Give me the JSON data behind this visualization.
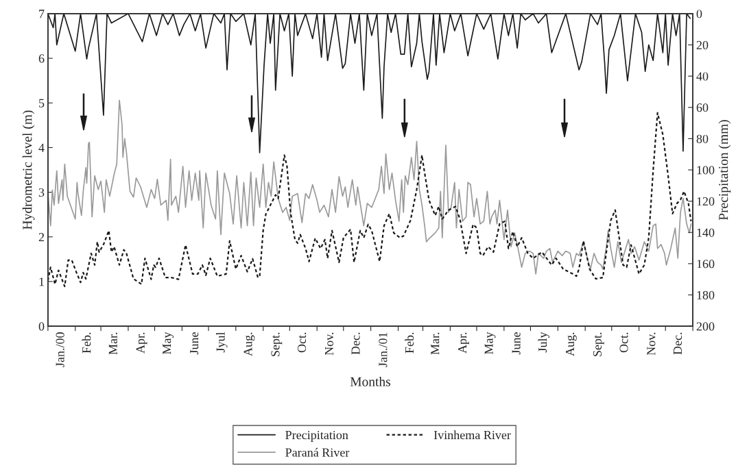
{
  "chart_data": {
    "type": "line",
    "xlabel": "Months",
    "ylabel": "Hydrometric level (m)",
    "y2label": "Precipitation (mm)",
    "xlim": [
      "2000-01-01",
      "2002-01-01"
    ],
    "xticks": [
      {
        "value": "2000-01-01",
        "label": null
      },
      {
        "value": "2000-01-16",
        "label": "Jan./00"
      },
      {
        "value": "2000-02-01",
        "label": null
      },
      {
        "value": "2000-02-15",
        "label": "Feb."
      },
      {
        "value": "2000-03-01",
        "label": null
      },
      {
        "value": "2000-03-16",
        "label": "Mar."
      },
      {
        "value": "2000-04-01",
        "label": null
      },
      {
        "value": "2000-04-16",
        "label": "Apr."
      },
      {
        "value": "2000-05-01",
        "label": null
      },
      {
        "value": "2000-05-16",
        "label": "May"
      },
      {
        "value": "2000-06-01",
        "label": null
      },
      {
        "value": "2000-06-16",
        "label": "June"
      },
      {
        "value": "2000-07-01",
        "label": null
      },
      {
        "value": "2000-07-16",
        "label": "Jyul"
      },
      {
        "value": "2000-08-01",
        "label": null
      },
      {
        "value": "2000-08-16",
        "label": "Aug."
      },
      {
        "value": "2000-09-01",
        "label": null
      },
      {
        "value": "2000-09-16",
        "label": "Sept."
      },
      {
        "value": "2000-10-01",
        "label": null
      },
      {
        "value": "2000-10-16",
        "label": "Oct."
      },
      {
        "value": "2000-11-01",
        "label": null
      },
      {
        "value": "2000-11-16",
        "label": "Nov."
      },
      {
        "value": "2000-12-01",
        "label": null
      },
      {
        "value": "2000-12-16",
        "label": "Dec."
      },
      {
        "value": "2001-01-01",
        "label": null
      },
      {
        "value": "2001-01-16",
        "label": "Jan./01"
      },
      {
        "value": "2001-02-01",
        "label": null
      },
      {
        "value": "2001-02-15",
        "label": "Feb."
      },
      {
        "value": "2001-03-01",
        "label": null
      },
      {
        "value": "2001-03-16",
        "label": "Mar."
      },
      {
        "value": "2001-04-01",
        "label": null
      },
      {
        "value": "2001-04-16",
        "label": "Apr."
      },
      {
        "value": "2001-05-01",
        "label": null
      },
      {
        "value": "2001-05-16",
        "label": "May"
      },
      {
        "value": "2001-06-01",
        "label": null
      },
      {
        "value": "2001-06-16",
        "label": "June"
      },
      {
        "value": "2001-07-01",
        "label": null
      },
      {
        "value": "2001-07-16",
        "label": "July"
      },
      {
        "value": "2001-08-01",
        "label": null
      },
      {
        "value": "2001-08-16",
        "label": "Aug."
      },
      {
        "value": "2001-09-01",
        "label": null
      },
      {
        "value": "2001-09-16",
        "label": "Sept."
      },
      {
        "value": "2001-10-01",
        "label": null
      },
      {
        "value": "2001-10-16",
        "label": "Oct."
      },
      {
        "value": "2001-11-01",
        "label": null
      },
      {
        "value": "2001-11-16",
        "label": "Nov."
      },
      {
        "value": "2001-12-01",
        "label": null
      },
      {
        "value": "2001-12-16",
        "label": "Dec."
      },
      {
        "value": "2002-01-01",
        "label": null
      }
    ],
    "ylim": [
      0,
      7
    ],
    "yticks": [
      0,
      1,
      2,
      3,
      4,
      5,
      6,
      7
    ],
    "y2lim": [
      200,
      0
    ],
    "y2ticks": [
      0,
      20,
      40,
      60,
      80,
      100,
      120,
      140,
      160,
      180,
      200
    ],
    "legend": "bottom",
    "grid": false,
    "series": [
      {
        "name": "Precipitation",
        "color": "#1a1a1a",
        "axis": "y2",
        "line_style": "solid",
        "x": [
          "2000-01-01",
          "2000-01-07",
          "2000-01-09",
          "2000-01-11",
          "2000-01-19",
          "2000-02-01",
          "2000-02-07",
          "2000-02-14",
          "2000-02-16",
          "2000-02-25",
          "2000-03-04",
          "2000-03-08",
          "2000-03-13",
          "2000-04-01",
          "2000-04-17",
          "2000-04-25",
          "2000-05-03",
          "2000-05-10",
          "2000-05-16",
          "2000-05-22",
          "2000-05-29",
          "2000-06-03",
          "2000-06-10",
          "2000-06-16",
          "2000-06-22",
          "2000-06-28",
          "2000-07-07",
          "2000-07-15",
          "2000-07-19",
          "2000-07-22",
          "2000-07-26",
          "2000-08-01",
          "2000-08-10",
          "2000-08-18",
          "2000-08-23",
          "2000-08-28",
          "2000-09-02",
          "2000-09-06",
          "2000-09-09",
          "2000-09-13",
          "2000-09-15",
          "2000-09-20",
          "2000-09-25",
          "2000-09-30",
          "2000-10-04",
          "2000-10-07",
          "2000-10-10",
          "2000-10-19",
          "2000-10-27",
          "2000-11-01",
          "2000-11-06",
          "2000-11-09",
          "2000-11-13",
          "2000-11-22",
          "2000-11-30",
          "2000-12-03",
          "2000-12-09",
          "2000-12-14",
          "2000-12-19",
          "2000-12-24",
          "2000-12-28",
          "2001-01-02",
          "2001-01-08",
          "2001-01-14",
          "2001-01-16",
          "2001-01-20",
          "2001-01-24",
          "2001-01-29",
          "2001-02-04",
          "2001-02-08",
          "2001-02-12",
          "2001-02-16",
          "2001-02-22",
          "2001-02-25",
          "2001-02-28",
          "2001-03-06",
          "2001-03-08",
          "2001-03-13",
          "2001-03-16",
          "2001-03-20",
          "2001-03-25",
          "2001-04-01",
          "2001-04-06",
          "2001-04-13",
          "2001-04-21",
          "2001-05-01",
          "2001-05-09",
          "2001-05-17",
          "2001-05-25",
          "2001-06-01",
          "2001-06-06",
          "2001-06-11",
          "2001-06-16",
          "2001-06-20",
          "2001-06-25",
          "2001-07-04",
          "2001-07-10",
          "2001-07-19",
          "2001-07-25",
          "2001-08-10",
          "2001-08-25",
          "2001-08-28",
          "2001-09-07",
          "2001-09-15",
          "2001-09-19",
          "2001-09-23",
          "2001-09-25",
          "2001-09-28",
          "2001-10-04",
          "2001-10-11",
          "2001-10-19",
          "2001-10-28",
          "2001-11-04",
          "2001-11-08",
          "2001-11-12",
          "2001-11-17",
          "2001-11-22",
          "2001-11-28",
          "2001-12-01",
          "2001-12-04",
          "2001-12-09",
          "2001-12-13",
          "2001-12-17",
          "2001-12-21",
          "2001-12-25",
          "2001-12-29"
        ],
        "values": [
          0,
          9,
          0,
          20,
          0,
          24,
          0,
          29,
          22,
          0,
          65,
          0,
          6,
          0,
          18,
          0,
          14,
          0,
          7,
          0,
          14,
          7,
          0,
          11,
          0,
          22,
          0,
          6,
          0,
          36,
          0,
          5,
          0,
          20,
          0,
          89,
          33,
          0,
          19,
          0,
          49,
          0,
          11,
          0,
          40,
          0,
          14,
          0,
          16,
          0,
          28,
          0,
          30,
          0,
          35,
          32,
          0,
          19,
          0,
          49,
          0,
          14,
          0,
          67,
          34,
          0,
          12,
          0,
          26,
          26,
          0,
          34,
          19,
          0,
          18,
          42,
          37,
          0,
          33,
          0,
          25,
          0,
          11,
          0,
          27,
          0,
          10,
          0,
          29,
          0,
          14,
          0,
          22,
          0,
          4,
          0,
          6,
          0,
          25,
          0,
          36,
          31,
          0,
          7,
          0,
          31,
          51,
          23,
          14,
          0,
          43,
          0,
          12,
          37,
          20,
          30,
          0,
          25,
          0,
          33,
          0,
          14,
          0,
          88,
          0,
          3
        ]
      },
      {
        "name": "Paraná River",
        "color": "#999999",
        "line_style": "solid",
        "x": [
          "2000-01-01",
          "2000-01-04",
          "2000-01-06",
          "2000-01-08",
          "2000-01-11",
          "2000-01-13",
          "2000-01-17",
          "2000-01-18",
          "2000-01-20",
          "2000-01-23",
          "2000-02-01",
          "2000-02-03",
          "2000-02-04",
          "2000-02-08",
          "2000-02-10",
          "2000-02-13",
          "2000-02-14",
          "2000-02-16",
          "2000-02-17",
          "2000-02-20",
          "2000-02-23",
          "2000-02-27",
          "2000-03-01",
          "2000-03-05",
          "2000-03-07",
          "2000-03-11",
          "2000-03-16",
          "2000-03-19",
          "2000-03-22",
          "2000-03-25",
          "2000-03-26",
          "2000-03-28",
          "2000-03-30",
          "2000-04-03",
          "2000-04-07",
          "2000-04-10",
          "2000-04-15",
          "2000-04-22",
          "2000-04-27",
          "2000-05-01",
          "2000-05-04",
          "2000-05-08",
          "2000-05-14",
          "2000-05-16",
          "2000-05-19",
          "2000-05-20",
          "2000-05-25",
          "2000-05-28",
          "2000-06-02",
          "2000-06-05",
          "2000-06-09",
          "2000-06-12",
          "2000-06-16",
          "2000-06-20",
          "2000-06-21",
          "2000-06-25",
          "2000-06-28",
          "2000-07-04",
          "2000-07-09",
          "2000-07-11",
          "2000-07-15",
          "2000-07-19",
          "2000-07-25",
          "2000-07-29",
          "2000-08-02",
          "2000-08-07",
          "2000-08-10",
          "2000-08-14",
          "2000-08-18",
          "2000-08-21",
          "2000-08-24",
          "2000-08-28",
          "2000-09-01",
          "2000-09-04",
          "2000-09-07",
          "2000-09-10",
          "2000-09-13",
          "2000-09-18",
          "2000-09-23",
          "2000-09-27",
          "2000-10-01",
          "2000-10-04",
          "2000-10-10",
          "2000-10-15",
          "2000-10-19",
          "2000-10-23",
          "2000-10-27",
          "2000-11-01",
          "2000-11-04",
          "2000-11-09",
          "2000-11-14",
          "2000-11-18",
          "2000-11-22",
          "2000-11-26",
          "2000-11-30",
          "2000-12-03",
          "2000-12-06",
          "2000-12-11",
          "2000-12-15",
          "2000-12-17",
          "2000-12-24",
          "2000-12-28",
          "2001-01-02",
          "2001-01-06",
          "2001-01-10",
          "2001-01-13",
          "2001-01-16",
          "2001-01-18",
          "2001-01-22",
          "2001-01-25",
          "2001-01-29",
          "2001-02-02",
          "2001-02-05",
          "2001-02-07",
          "2001-02-09",
          "2001-02-12",
          "2001-02-16",
          "2001-02-19",
          "2001-02-22",
          "2001-02-25",
          "2001-02-28",
          "2001-03-03",
          "2001-03-05",
          "2001-03-09",
          "2001-03-15",
          "2001-03-19",
          "2001-03-21",
          "2001-03-23",
          "2001-03-27",
          "2001-03-30",
          "2001-04-02",
          "2001-04-06",
          "2001-04-08",
          "2001-04-11",
          "2001-04-15",
          "2001-04-19",
          "2001-04-21",
          "2001-04-24",
          "2001-04-28",
          "2001-05-01",
          "2001-05-05",
          "2001-05-09",
          "2001-05-13",
          "2001-05-16",
          "2001-05-18",
          "2001-05-22",
          "2001-05-24",
          "2001-05-27",
          "2001-06-01",
          "2001-06-05",
          "2001-06-09",
          "2001-06-13",
          "2001-06-16",
          "2001-06-21",
          "2001-06-25",
          "2001-06-30",
          "2001-07-04",
          "2001-07-07",
          "2001-07-10",
          "2001-07-16",
          "2001-07-19",
          "2001-07-23",
          "2001-07-26",
          "2001-08-01",
          "2001-08-06",
          "2001-08-10",
          "2001-08-15",
          "2001-08-18",
          "2001-08-22",
          "2001-08-25",
          "2001-08-30",
          "2001-09-04",
          "2001-09-07",
          "2001-09-11",
          "2001-09-15",
          "2001-09-19",
          "2001-09-21",
          "2001-09-25",
          "2001-09-27",
          "2001-09-30",
          "2001-10-04",
          "2001-10-08",
          "2001-10-12",
          "2001-10-16",
          "2001-10-20",
          "2001-10-23",
          "2001-10-27",
          "2001-11-01",
          "2001-11-07",
          "2001-11-12",
          "2001-11-17",
          "2001-11-20",
          "2001-11-22",
          "2001-11-26",
          "2001-11-30",
          "2001-12-02",
          "2001-12-07",
          "2001-12-12",
          "2001-12-15",
          "2001-12-18",
          "2001-12-21",
          "2001-12-25",
          "2001-12-28",
          "2001-12-30"
        ],
        "values": [
          2.98,
          2.25,
          3.05,
          2.71,
          3.48,
          2.75,
          3.28,
          2.82,
          3.63,
          2.91,
          2.4,
          3.22,
          2.98,
          2.48,
          3.02,
          3.55,
          3.2,
          4.09,
          4.12,
          2.45,
          3.37,
          3.06,
          3.25,
          2.55,
          3.28,
          2.91,
          3.4,
          3.63,
          5.06,
          4.51,
          3.78,
          4.2,
          3.89,
          3.02,
          2.89,
          3.32,
          3.12,
          2.66,
          3.06,
          2.86,
          3.29,
          2.71,
          2.82,
          2.37,
          3.74,
          2.71,
          2.91,
          2.55,
          3.58,
          2.66,
          3.48,
          2.82,
          3.43,
          2.82,
          3.48,
          2.2,
          3.43,
          2.71,
          2.4,
          3.48,
          2.05,
          3.43,
          2.97,
          2.29,
          3.37,
          2.2,
          3.22,
          2.25,
          3.45,
          2.25,
          3.32,
          2.66,
          3.63,
          2.66,
          3.22,
          2.91,
          3.68,
          2.86,
          2.55,
          2.66,
          2.37,
          2.91,
          2.97,
          2.32,
          2.97,
          2.86,
          3.17,
          2.82,
          2.55,
          2.71,
          2.45,
          3.06,
          2.55,
          3.35,
          2.91,
          3.12,
          2.66,
          3.28,
          2.71,
          3.12,
          2.25,
          2.75,
          2.66,
          2.86,
          3.06,
          3.58,
          2.97,
          3.86,
          3.06,
          3.43,
          2.82,
          2.35,
          3.28,
          2.55,
          3.37,
          3.17,
          3.78,
          3.28,
          4.14,
          3.06,
          2.71,
          2.25,
          1.89,
          1.98,
          2.09,
          2.2,
          3.02,
          1.98,
          4.05,
          2.55,
          2.66,
          3.22,
          2.2,
          3.06,
          2.35,
          2.45,
          3.22,
          3.17,
          2.45,
          2.86,
          2.29,
          2.35,
          3.02,
          2.29,
          2.45,
          2.6,
          2.29,
          2.82,
          1.94,
          2.6,
          1.78,
          2.09,
          1.83,
          1.32,
          1.63,
          1.68,
          1.63,
          1.17,
          1.63,
          1.52,
          1.68,
          1.74,
          1.43,
          1.68,
          1.58,
          1.68,
          1.63,
          1.32,
          1.63,
          1.58,
          1.89,
          1.48,
          1.28,
          1.63,
          1.43,
          1.37,
          1.28,
          1.78,
          2.14,
          1.74,
          1.32,
          1.89,
          1.43,
          1.68,
          1.94,
          1.63,
          1.78,
          1.48,
          1.89,
          1.68,
          2.25,
          2.29,
          1.74,
          1.83,
          1.63,
          1.37,
          1.74,
          2.2,
          1.52,
          2.55,
          2.86,
          2.29,
          2.09,
          2.29
        ]
      },
      {
        "name": "Ivinhema River",
        "color": "#1a1a1a",
        "line_style": "dotted",
        "x": [
          "2000-01-01",
          "2000-01-04",
          "2000-01-09",
          "2000-01-13",
          "2000-01-20",
          "2000-01-24",
          "2000-01-28",
          "2000-02-02",
          "2000-02-07",
          "2000-02-10",
          "2000-02-13",
          "2000-02-19",
          "2000-02-23",
          "2000-02-26",
          "2000-02-28",
          "2000-03-04",
          "2000-03-10",
          "2000-03-13",
          "2000-03-16",
          "2000-03-22",
          "2000-03-27",
          "2000-03-30",
          "2000-04-07",
          "2000-04-16",
          "2000-04-20",
          "2000-04-27",
          "2000-04-30",
          "2000-05-02",
          "2000-05-06",
          "2000-05-13",
          "2000-05-20",
          "2000-05-28",
          "2000-06-05",
          "2000-06-13",
          "2000-06-19",
          "2000-06-24",
          "2000-06-28",
          "2000-07-03",
          "2000-07-11",
          "2000-07-21",
          "2000-07-25",
          "2000-08-01",
          "2000-08-07",
          "2000-08-14",
          "2000-08-20",
          "2000-08-26",
          "2000-08-28",
          "2000-09-01",
          "2000-09-04",
          "2000-09-15",
          "2000-09-18",
          "2000-09-25",
          "2000-09-28",
          "2000-10-02",
          "2000-10-07",
          "2000-10-10",
          "2000-10-13",
          "2000-10-19",
          "2000-10-23",
          "2000-10-30",
          "2000-11-05",
          "2000-11-10",
          "2000-11-13",
          "2000-11-18",
          "2000-11-26",
          "2000-12-01",
          "2000-12-09",
          "2000-12-13",
          "2000-12-20",
          "2000-12-24",
          "2000-12-29",
          "2001-01-02",
          "2001-01-11",
          "2001-01-16",
          "2001-01-22",
          "2001-01-27",
          "2001-02-03",
          "2001-02-07",
          "2001-02-15",
          "2001-02-22",
          "2001-02-28",
          "2001-03-01",
          "2001-03-08",
          "2001-03-15",
          "2001-03-19",
          "2001-03-23",
          "2001-03-30",
          "2001-04-07",
          "2001-04-12",
          "2001-04-19",
          "2001-04-27",
          "2001-05-01",
          "2001-05-05",
          "2001-05-08",
          "2001-05-14",
          "2001-05-20",
          "2001-05-27",
          "2001-06-02",
          "2001-06-06",
          "2001-06-11",
          "2001-06-16",
          "2001-06-21",
          "2001-06-28",
          "2001-07-04",
          "2001-07-14",
          "2001-07-25",
          "2001-07-30",
          "2001-08-07",
          "2001-08-18",
          "2001-08-22",
          "2001-08-25",
          "2001-08-30",
          "2001-09-06",
          "2001-09-13",
          "2001-09-21",
          "2001-09-30",
          "2001-10-05",
          "2001-10-14",
          "2001-10-18",
          "2001-10-23",
          "2001-11-01",
          "2001-11-07",
          "2001-11-12",
          "2001-11-17",
          "2001-11-22",
          "2001-11-28",
          "2001-12-04",
          "2001-12-09",
          "2001-12-14",
          "2001-12-18",
          "2001-12-22",
          "2001-12-27",
          "2001-12-30"
        ],
        "values": [
          1.02,
          1.32,
          0.94,
          1.25,
          0.89,
          1.48,
          1.48,
          1.22,
          0.98,
          1.2,
          1.06,
          1.63,
          1.37,
          1.89,
          1.66,
          1.83,
          2.14,
          1.66,
          1.78,
          1.37,
          1.71,
          1.63,
          1.06,
          0.94,
          1.52,
          1.05,
          1.37,
          1.32,
          1.52,
          1.09,
          1.09,
          1.05,
          1.82,
          1.17,
          1.17,
          1.37,
          1.14,
          1.52,
          1.12,
          1.17,
          1.91,
          1.28,
          1.58,
          1.22,
          1.51,
          1.09,
          1.12,
          2.15,
          2.51,
          2.94,
          2.86,
          3.83,
          3.58,
          2.55,
          1.94,
          1.86,
          2.05,
          1.74,
          1.45,
          1.97,
          1.74,
          1.94,
          1.52,
          2.14,
          1.43,
          1.98,
          2.17,
          1.43,
          2.14,
          1.98,
          2.28,
          2.14,
          1.45,
          2.25,
          2.52,
          2.09,
          1.98,
          2.02,
          2.37,
          3.06,
          3.83,
          3.68,
          2.82,
          2.48,
          2.68,
          2.4,
          2.6,
          2.68,
          2.4,
          1.63,
          2.28,
          2.2,
          1.63,
          1.58,
          1.78,
          1.66,
          2.29,
          2.35,
          1.74,
          2.12,
          1.78,
          1.98,
          1.63,
          1.52,
          1.66,
          1.37,
          1.52,
          1.28,
          1.17,
          1.12,
          1.28,
          1.91,
          1.28,
          1.06,
          1.09,
          2.37,
          2.6,
          1.37,
          1.32,
          1.82,
          1.17,
          1.37,
          1.98,
          3.48,
          4.78,
          4.29,
          3.37,
          2.52,
          2.75,
          2.83,
          3.02,
          2.75,
          2.35
        ]
      }
    ]
  }
}
